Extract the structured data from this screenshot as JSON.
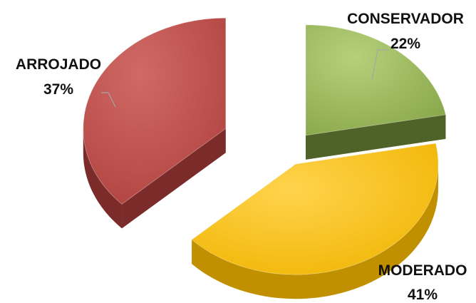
{
  "chart_data": {
    "type": "pie",
    "style": "3d-exploded",
    "categories": [
      "CONSERVADOR",
      "MODERADO",
      "ARROJADO"
    ],
    "values": [
      22,
      41,
      37
    ],
    "value_labels": [
      "22%",
      "41%",
      "37%"
    ],
    "colors": {
      "CONSERVADOR": {
        "top": "#9bbb59",
        "side": "#4f6228"
      },
      "MODERADO": {
        "top": "#ffc000",
        "side": "#c09000"
      },
      "ARROJADO": {
        "top": "#c0504d",
        "side": "#7a2b2a"
      }
    },
    "legend": "none",
    "data_labels": "outside-with-leader-lines"
  }
}
